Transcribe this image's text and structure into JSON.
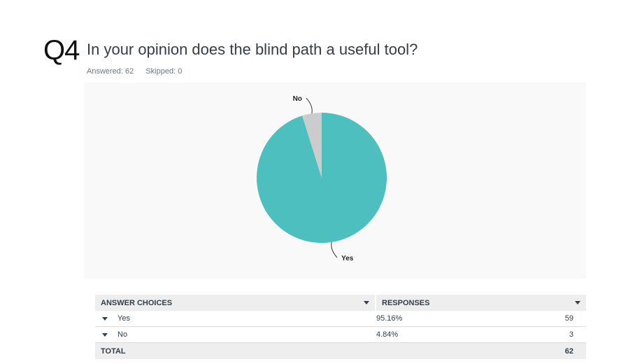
{
  "question": {
    "number": "Q4",
    "title": "In your opinion does the blind path a useful tool?",
    "answered": "Answered: 62",
    "skipped": "Skipped: 0"
  },
  "colors": {
    "yes": "#4dbfbf",
    "no": "#cccccc"
  },
  "chart_data": {
    "type": "pie",
    "categories": [
      "Yes",
      "No"
    ],
    "values": [
      95.16,
      4.84
    ],
    "title": "",
    "legend": "none"
  },
  "table": {
    "headers": {
      "choices": "ANSWER CHOICES",
      "responses": "RESPONSES"
    },
    "rows": [
      {
        "choice": "Yes",
        "percent": "95.16%",
        "count": "59"
      },
      {
        "choice": "No",
        "percent": "4.84%",
        "count": "3"
      }
    ],
    "total": {
      "label": "TOTAL",
      "count": "62"
    }
  }
}
